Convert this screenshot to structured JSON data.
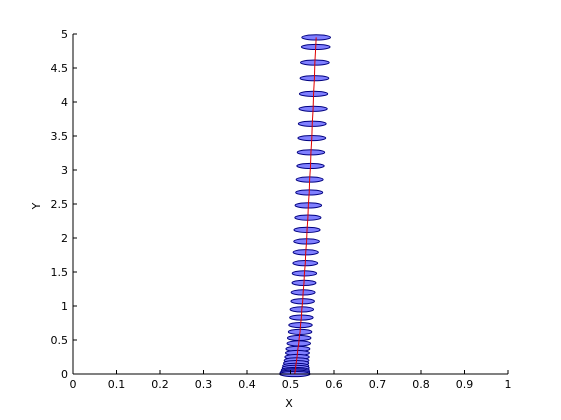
{
  "chart_data": {
    "type": "line",
    "title": "",
    "xlabel": "X",
    "ylabel": "Y",
    "xlim": [
      0,
      1
    ],
    "ylim": [
      0,
      5
    ],
    "x_ticks": [
      "0",
      "0.1",
      "0.2",
      "0.3",
      "0.4",
      "0.5",
      "0.6",
      "0.7",
      "0.8",
      "0.9",
      "1"
    ],
    "y_ticks": [
      "0",
      "0.5",
      "1",
      "1.5",
      "2",
      "2.5",
      "3",
      "3.5",
      "4",
      "4.5",
      "5"
    ],
    "grid": false,
    "colors": {
      "line": "#e00000",
      "marker_fill": "#8080ff",
      "marker_edge": "#000080"
    },
    "series": [
      {
        "marker": "ellipse",
        "points": [
          {
            "x": 0.51,
            "y": 0.0,
            "w": 0.07
          },
          {
            "x": 0.51,
            "y": 0.02,
            "w": 0.068
          },
          {
            "x": 0.511,
            "y": 0.04,
            "w": 0.066
          },
          {
            "x": 0.511,
            "y": 0.06,
            "w": 0.064
          },
          {
            "x": 0.512,
            "y": 0.09,
            "w": 0.062
          },
          {
            "x": 0.512,
            "y": 0.12,
            "w": 0.06
          },
          {
            "x": 0.513,
            "y": 0.16,
            "w": 0.058
          },
          {
            "x": 0.514,
            "y": 0.2,
            "w": 0.057
          },
          {
            "x": 0.515,
            "y": 0.25,
            "w": 0.056
          },
          {
            "x": 0.516,
            "y": 0.31,
            "w": 0.055
          },
          {
            "x": 0.517,
            "y": 0.37,
            "w": 0.055
          },
          {
            "x": 0.519,
            "y": 0.45,
            "w": 0.054
          },
          {
            "x": 0.52,
            "y": 0.53,
            "w": 0.054
          },
          {
            "x": 0.522,
            "y": 0.62,
            "w": 0.054
          },
          {
            "x": 0.523,
            "y": 0.72,
            "w": 0.054
          },
          {
            "x": 0.525,
            "y": 0.83,
            "w": 0.054
          },
          {
            "x": 0.526,
            "y": 0.95,
            "w": 0.054
          },
          {
            "x": 0.528,
            "y": 1.07,
            "w": 0.054
          },
          {
            "x": 0.529,
            "y": 1.2,
            "w": 0.055
          },
          {
            "x": 0.531,
            "y": 1.34,
            "w": 0.055
          },
          {
            "x": 0.532,
            "y": 1.48,
            "w": 0.056
          },
          {
            "x": 0.534,
            "y": 1.63,
            "w": 0.057
          },
          {
            "x": 0.535,
            "y": 1.79,
            "w": 0.058
          },
          {
            "x": 0.537,
            "y": 1.95,
            "w": 0.059
          },
          {
            "x": 0.538,
            "y": 2.12,
            "w": 0.06
          },
          {
            "x": 0.54,
            "y": 2.3,
            "w": 0.06
          },
          {
            "x": 0.541,
            "y": 2.48,
            "w": 0.061
          },
          {
            "x": 0.543,
            "y": 2.67,
            "w": 0.062
          },
          {
            "x": 0.544,
            "y": 2.86,
            "w": 0.062
          },
          {
            "x": 0.546,
            "y": 3.06,
            "w": 0.063
          },
          {
            "x": 0.547,
            "y": 3.26,
            "w": 0.063
          },
          {
            "x": 0.549,
            "y": 3.47,
            "w": 0.064
          },
          {
            "x": 0.55,
            "y": 3.68,
            "w": 0.064
          },
          {
            "x": 0.552,
            "y": 3.9,
            "w": 0.065
          },
          {
            "x": 0.553,
            "y": 4.12,
            "w": 0.065
          },
          {
            "x": 0.555,
            "y": 4.35,
            "w": 0.066
          },
          {
            "x": 0.556,
            "y": 4.58,
            "w": 0.066
          },
          {
            "x": 0.558,
            "y": 4.81,
            "w": 0.066
          },
          {
            "x": 0.559,
            "y": 4.95,
            "w": 0.066
          }
        ]
      }
    ]
  }
}
